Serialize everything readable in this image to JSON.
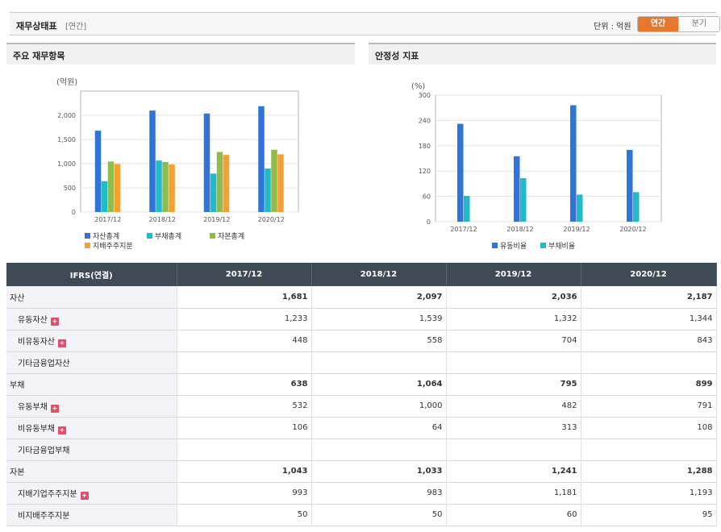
{
  "header": {
    "title": "재무상태표",
    "subtitle": "[연간]",
    "unit_label": "단위 : 억원",
    "toggle": [
      "연간",
      "분기"
    ]
  },
  "colors": {
    "accent": "#e6782d",
    "table_header": "#3f4a57",
    "series1": "#2f74d8",
    "series2": "#22b9c9",
    "series3": "#8fbc4a",
    "series4": "#f5a031"
  },
  "chart_data": [
    {
      "type": "bar",
      "title": "주요 재무항목",
      "ylabel": "(억원)",
      "categories": [
        "2017/12",
        "2018/12",
        "2019/12",
        "2020/12"
      ],
      "ylim": [
        0,
        2500
      ],
      "yticks": [
        "0",
        "500",
        "1,000",
        "1,500",
        "2,000"
      ],
      "series": [
        {
          "name": "자산총계",
          "values": [
            1681,
            2097,
            2036,
            2187
          ],
          "color": "#2f74d8"
        },
        {
          "name": "부채총계",
          "values": [
            638,
            1064,
            795,
            899
          ],
          "color": "#22b9c9"
        },
        {
          "name": "자본총계",
          "values": [
            1043,
            1033,
            1241,
            1288
          ],
          "color": "#8fbc4a"
        },
        {
          "name": "지배주주지분",
          "values": [
            993,
            983,
            1181,
            1193
          ],
          "color": "#f5a031"
        }
      ],
      "grid": true,
      "legend": "bottom"
    },
    {
      "type": "bar",
      "title": "안정성 지표",
      "ylabel": "(%)",
      "categories": [
        "2017/12",
        "2018/12",
        "2019/12",
        "2020/12"
      ],
      "ylim": [
        0,
        300
      ],
      "yticks": [
        "0",
        "60",
        "120",
        "180",
        "240",
        "300"
      ],
      "series": [
        {
          "name": "유동비율",
          "values": [
            232,
            155,
            276,
            170
          ],
          "color": "#2f74d8"
        },
        {
          "name": "부채비율",
          "values": [
            61,
            103,
            64,
            70
          ],
          "color": "#22b9c9"
        }
      ],
      "grid": true,
      "legend": "bottom"
    }
  ],
  "table": {
    "header": [
      "IFRS(연결)",
      "2017/12",
      "2018/12",
      "2019/12",
      "2020/12"
    ],
    "rows": [
      {
        "label": "자산",
        "values": [
          "1,681",
          "2,097",
          "2,036",
          "2,187"
        ],
        "bold": true,
        "sub": false,
        "plus": false
      },
      {
        "label": "유동자산",
        "values": [
          "1,233",
          "1,539",
          "1,332",
          "1,344"
        ],
        "bold": false,
        "sub": true,
        "plus": true
      },
      {
        "label": "비유동자산",
        "values": [
          "448",
          "558",
          "704",
          "843"
        ],
        "bold": false,
        "sub": true,
        "plus": true
      },
      {
        "label": "기타금융업자산",
        "values": [
          "",
          "",
          "",
          ""
        ],
        "bold": false,
        "sub": true,
        "plus": false
      },
      {
        "label": "부채",
        "values": [
          "638",
          "1,064",
          "795",
          "899"
        ],
        "bold": true,
        "sub": false,
        "plus": false
      },
      {
        "label": "유동부채",
        "values": [
          "532",
          "1,000",
          "482",
          "791"
        ],
        "bold": false,
        "sub": true,
        "plus": true
      },
      {
        "label": "비유동부채",
        "values": [
          "106",
          "64",
          "313",
          "108"
        ],
        "bold": false,
        "sub": true,
        "plus": true
      },
      {
        "label": "기타금융업부채",
        "values": [
          "",
          "",
          "",
          ""
        ],
        "bold": false,
        "sub": true,
        "plus": false
      },
      {
        "label": "자본",
        "values": [
          "1,043",
          "1,033",
          "1,241",
          "1,288"
        ],
        "bold": true,
        "sub": false,
        "plus": false
      },
      {
        "label": "지배기업주주지분",
        "values": [
          "993",
          "983",
          "1,181",
          "1,193"
        ],
        "bold": false,
        "sub": true,
        "plus": true
      },
      {
        "label": "비지배주주지분",
        "values": [
          "50",
          "50",
          "60",
          "95"
        ],
        "bold": false,
        "sub": true,
        "plus": false
      }
    ],
    "plus_icon": "+"
  }
}
